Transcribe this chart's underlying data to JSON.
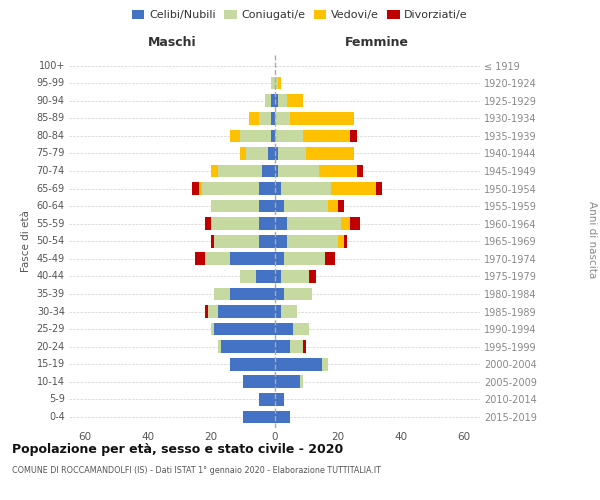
{
  "age_groups": [
    "0-4",
    "5-9",
    "10-14",
    "15-19",
    "20-24",
    "25-29",
    "30-34",
    "35-39",
    "40-44",
    "45-49",
    "50-54",
    "55-59",
    "60-64",
    "65-69",
    "70-74",
    "75-79",
    "80-84",
    "85-89",
    "90-94",
    "95-99",
    "100+"
  ],
  "birth_years": [
    "2015-2019",
    "2010-2014",
    "2005-2009",
    "2000-2004",
    "1995-1999",
    "1990-1994",
    "1985-1989",
    "1980-1984",
    "1975-1979",
    "1970-1974",
    "1965-1969",
    "1960-1964",
    "1955-1959",
    "1950-1954",
    "1945-1949",
    "1940-1944",
    "1935-1939",
    "1930-1934",
    "1925-1929",
    "1920-1924",
    "≤ 1919"
  ],
  "maschi": {
    "celibi": [
      10,
      5,
      10,
      14,
      17,
      19,
      18,
      14,
      6,
      14,
      5,
      5,
      5,
      5,
      4,
      2,
      1,
      1,
      1,
      0,
      0
    ],
    "coniugati": [
      0,
      0,
      0,
      0,
      1,
      1,
      3,
      5,
      5,
      8,
      14,
      15,
      15,
      18,
      14,
      7,
      10,
      4,
      2,
      1,
      0
    ],
    "vedovi": [
      0,
      0,
      0,
      0,
      0,
      0,
      0,
      0,
      0,
      0,
      0,
      0,
      0,
      1,
      2,
      2,
      3,
      3,
      0,
      0,
      0
    ],
    "divorziati": [
      0,
      0,
      0,
      0,
      0,
      0,
      1,
      0,
      0,
      3,
      1,
      2,
      0,
      2,
      0,
      0,
      0,
      0,
      0,
      0,
      0
    ]
  },
  "femmine": {
    "nubili": [
      5,
      3,
      8,
      15,
      5,
      6,
      2,
      3,
      2,
      3,
      4,
      4,
      3,
      2,
      1,
      1,
      0,
      0,
      1,
      0,
      0
    ],
    "coniugate": [
      0,
      0,
      1,
      2,
      4,
      5,
      5,
      9,
      9,
      13,
      16,
      17,
      14,
      16,
      13,
      9,
      9,
      5,
      3,
      1,
      0
    ],
    "vedove": [
      0,
      0,
      0,
      0,
      0,
      0,
      0,
      0,
      0,
      0,
      2,
      3,
      3,
      14,
      12,
      15,
      15,
      20,
      5,
      1,
      0
    ],
    "divorziate": [
      0,
      0,
      0,
      0,
      1,
      0,
      0,
      0,
      2,
      3,
      1,
      3,
      2,
      2,
      2,
      0,
      2,
      0,
      0,
      0,
      0
    ]
  },
  "colors": {
    "celibi": "#4472c4",
    "coniugati": "#c5d9a0",
    "vedovi": "#ffc000",
    "divorziati": "#c00000"
  },
  "xlim": 65,
  "title": "Popolazione per età, sesso e stato civile - 2020",
  "subtitle": "COMUNE DI ROCCAMANDOLFI (IS) - Dati ISTAT 1° gennaio 2020 - Elaborazione TUTTITALIA.IT",
  "ylabel_left": "Fasce di età",
  "ylabel_right": "Anni di nascita",
  "xlabel_maschi": "Maschi",
  "xlabel_femmine": "Femmine",
  "legend_labels": [
    "Celibi/Nubili",
    "Coniugati/e",
    "Vedovi/e",
    "Divorziati/e"
  ],
  "background_color": "#ffffff",
  "grid_color": "#cccccc"
}
